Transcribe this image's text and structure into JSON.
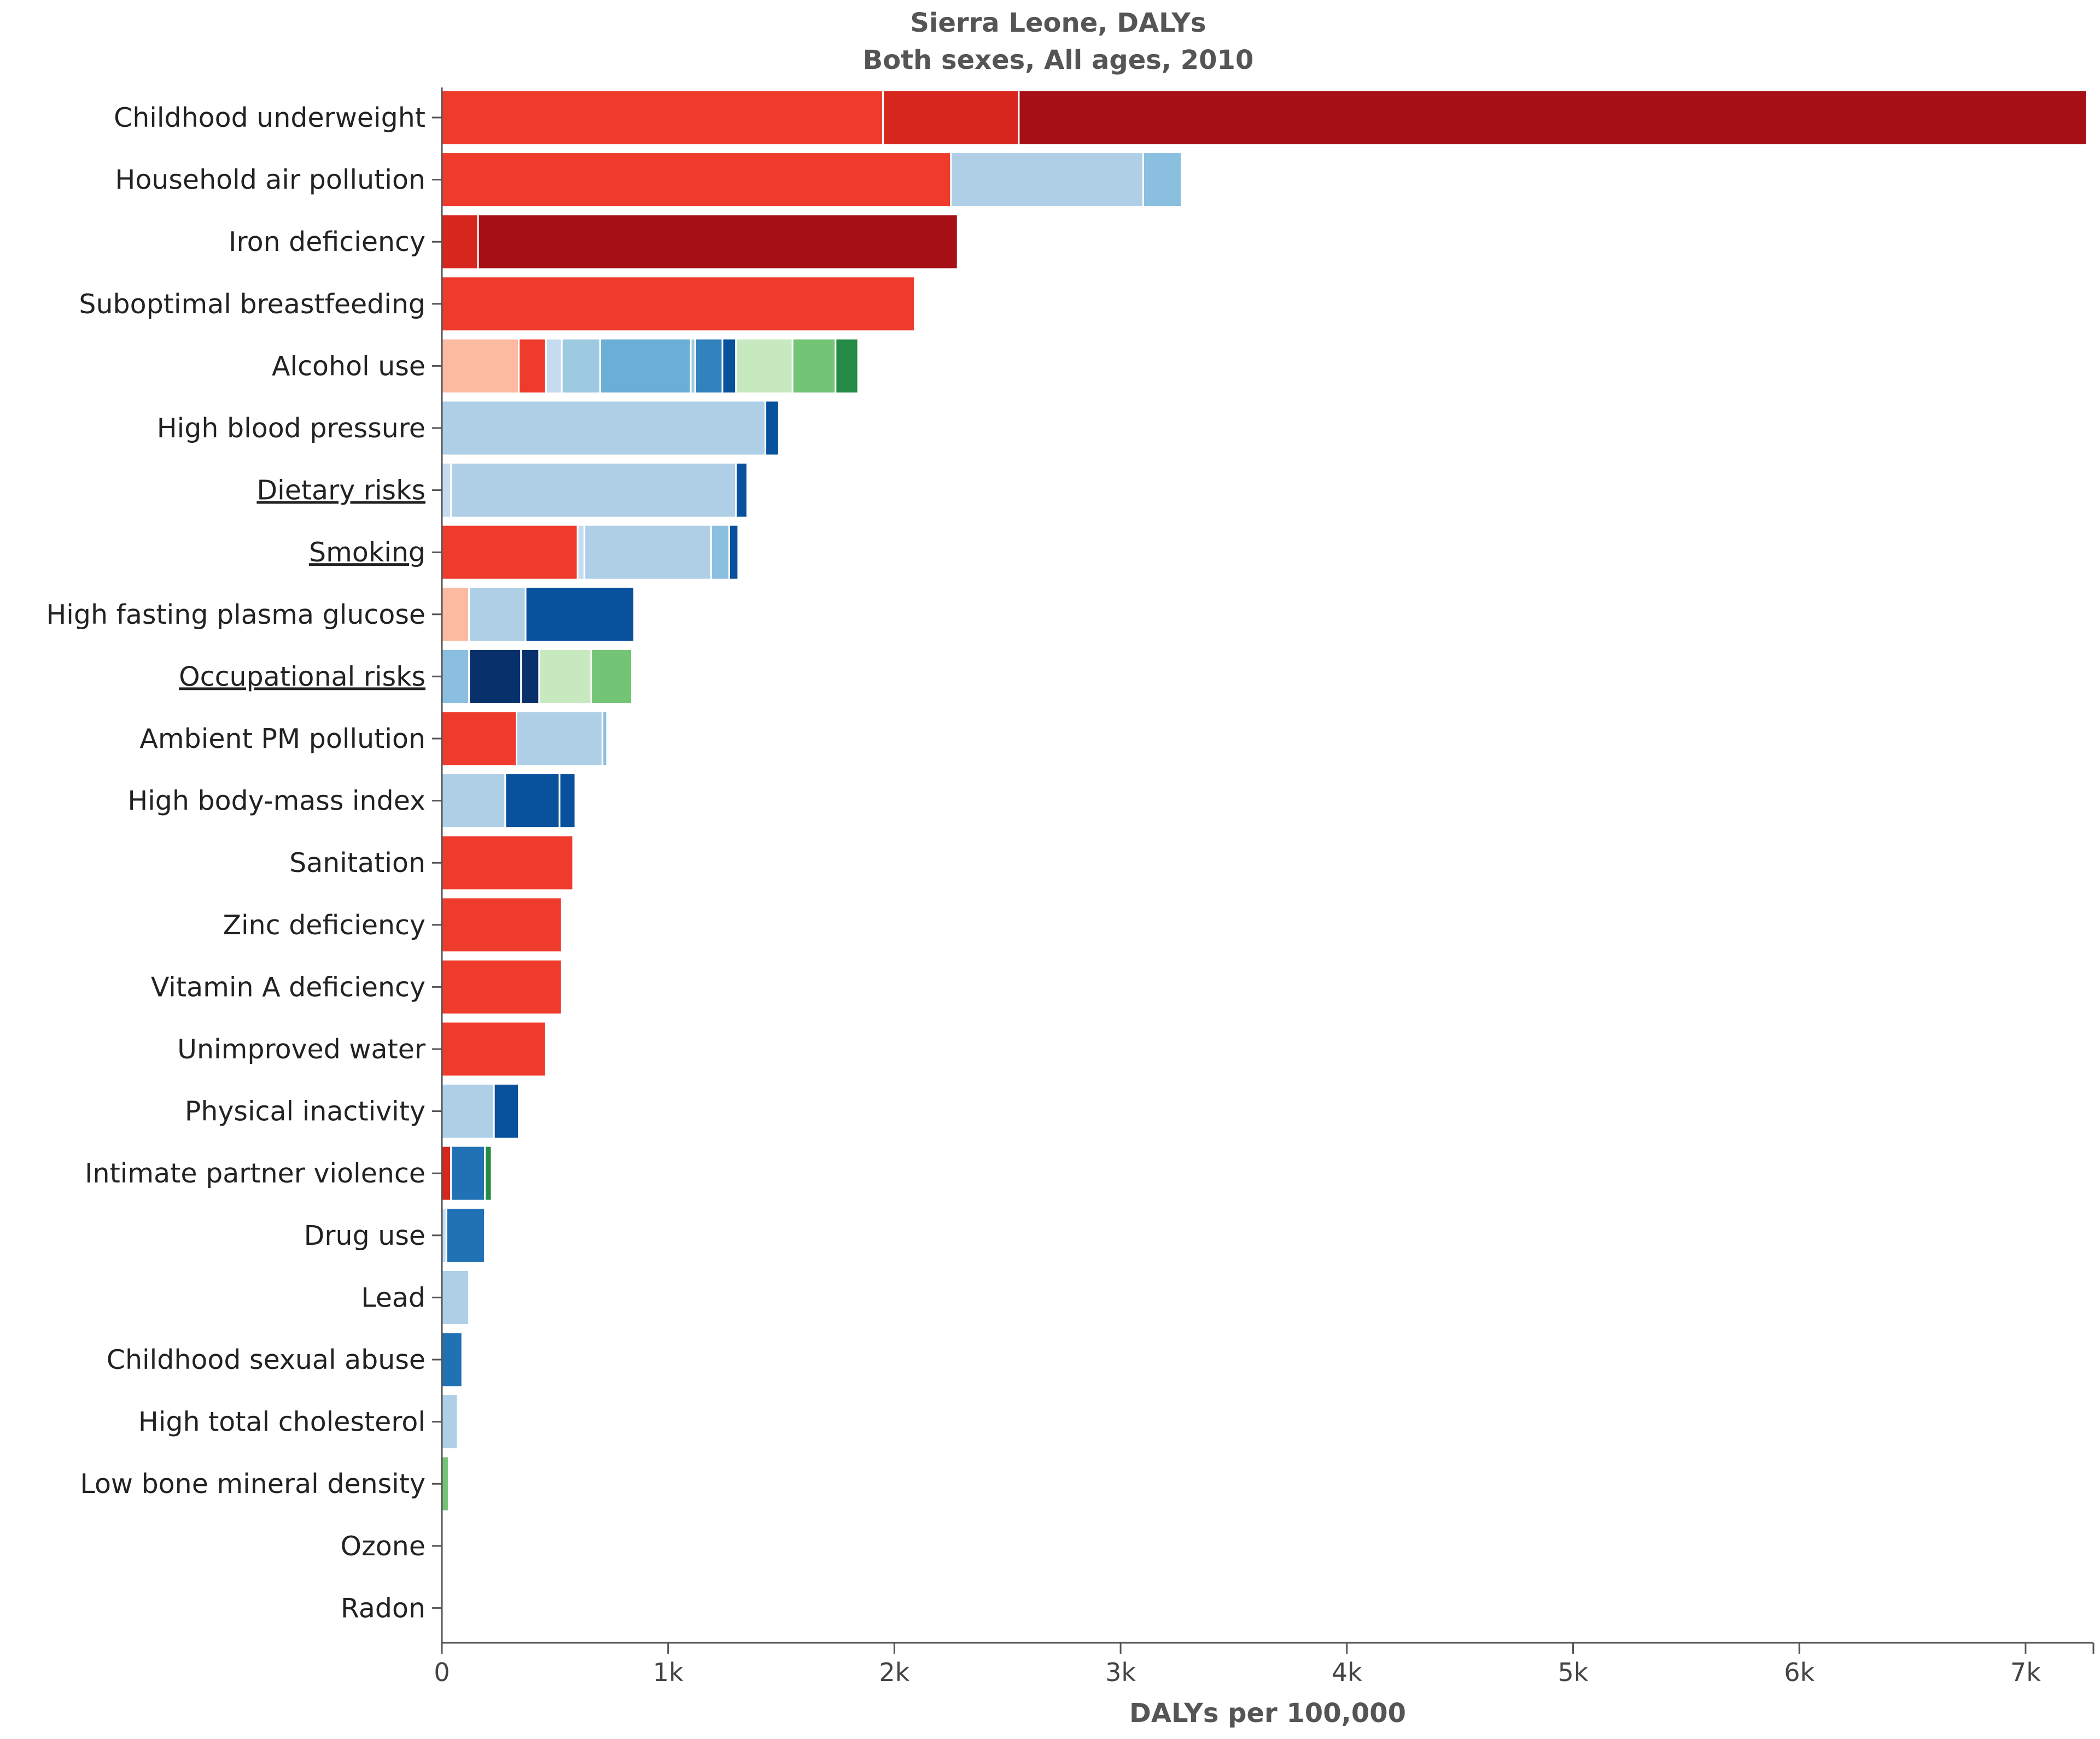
{
  "chart_data": {
    "type": "bar",
    "orientation": "horizontal",
    "stacked": true,
    "title": "Sierra Leone, DALYs",
    "subtitle": "Both sexes, All ages, 2010",
    "xlabel": "DALYs per 100,000",
    "ylabel": "",
    "xlim": [
      0,
      7300
    ],
    "x_ticks": [
      0,
      1000,
      2000,
      3000,
      4000,
      5000,
      6000,
      7000
    ],
    "x_tick_labels": [
      "0",
      "1k",
      "2k",
      "3k",
      "4k",
      "5k",
      "6k",
      "7k"
    ],
    "grid": false,
    "legend": "none",
    "categories": [
      {
        "label": "Childhood underweight",
        "link": false,
        "segments": [
          {
            "value": 1950,
            "color": "#ef3b2c"
          },
          {
            "value": 600,
            "color": "#d7261e"
          },
          {
            "value": 4720,
            "color": "#a50f15"
          }
        ]
      },
      {
        "label": "Household air pollution",
        "link": false,
        "segments": [
          {
            "value": 2250,
            "color": "#ef3b2c"
          },
          {
            "value": 850,
            "color": "#aecfe6"
          },
          {
            "value": 170,
            "color": "#8bbfe0"
          }
        ]
      },
      {
        "label": "Iron deficiency",
        "link": false,
        "segments": [
          {
            "value": 160,
            "color": "#d7261e"
          },
          {
            "value": 2120,
            "color": "#a50f15"
          }
        ]
      },
      {
        "label": "Suboptimal breastfeeding",
        "link": false,
        "segments": [
          {
            "value": 2090,
            "color": "#ef3b2c"
          }
        ]
      },
      {
        "label": "Alcohol use",
        "link": false,
        "segments": [
          {
            "value": 340,
            "color": "#fcbba1"
          },
          {
            "value": 120,
            "color": "#ef3b2c"
          },
          {
            "value": 70,
            "color": "#c6dbef"
          },
          {
            "value": 170,
            "color": "#9ecae1"
          },
          {
            "value": 400,
            "color": "#6baed6"
          },
          {
            "value": 20,
            "color": "#9ecae1"
          },
          {
            "value": 120,
            "color": "#3182bd"
          },
          {
            "value": 60,
            "color": "#08519c"
          },
          {
            "value": 250,
            "color": "#c7e9c0"
          },
          {
            "value": 190,
            "color": "#74c476"
          },
          {
            "value": 100,
            "color": "#238b45"
          }
        ]
      },
      {
        "label": "High blood pressure",
        "link": false,
        "segments": [
          {
            "value": 1430,
            "color": "#aecfe6"
          },
          {
            "value": 60,
            "color": "#08519c"
          }
        ]
      },
      {
        "label": "Dietary risks",
        "link": true,
        "segments": [
          {
            "value": 40,
            "color": "#c6dbef"
          },
          {
            "value": 1260,
            "color": "#aecfe6"
          },
          {
            "value": 50,
            "color": "#08519c"
          }
        ]
      },
      {
        "label": "Smoking",
        "link": true,
        "segments": [
          {
            "value": 600,
            "color": "#ef3b2c"
          },
          {
            "value": 30,
            "color": "#c6dbef"
          },
          {
            "value": 560,
            "color": "#aecfe6"
          },
          {
            "value": 80,
            "color": "#8bbfe0"
          },
          {
            "value": 40,
            "color": "#08519c"
          }
        ]
      },
      {
        "label": "High fasting plasma glucose",
        "link": false,
        "segments": [
          {
            "value": 120,
            "color": "#fcbba1"
          },
          {
            "value": 250,
            "color": "#aecfe6"
          },
          {
            "value": 480,
            "color": "#08519c"
          }
        ]
      },
      {
        "label": "Occupational risks",
        "link": true,
        "segments": [
          {
            "value": 120,
            "color": "#8bbfe0"
          },
          {
            "value": 230,
            "color": "#08306b"
          },
          {
            "value": 80,
            "color": "#08306b"
          },
          {
            "value": 230,
            "color": "#c7e9c0"
          },
          {
            "value": 180,
            "color": "#74c476"
          }
        ]
      },
      {
        "label": "Ambient PM pollution",
        "link": false,
        "segments": [
          {
            "value": 330,
            "color": "#ef3b2c"
          },
          {
            "value": 380,
            "color": "#aecfe6"
          },
          {
            "value": 20,
            "color": "#8bbfe0"
          }
        ]
      },
      {
        "label": "High body-mass index",
        "link": false,
        "segments": [
          {
            "value": 280,
            "color": "#aecfe6"
          },
          {
            "value": 240,
            "color": "#08519c"
          },
          {
            "value": 70,
            "color": "#08519c"
          }
        ]
      },
      {
        "label": "Sanitation",
        "link": false,
        "segments": [
          {
            "value": 580,
            "color": "#ef3b2c"
          }
        ]
      },
      {
        "label": "Zinc deficiency",
        "link": false,
        "segments": [
          {
            "value": 530,
            "color": "#ef3b2c"
          }
        ]
      },
      {
        "label": "Vitamin A deficiency",
        "link": false,
        "segments": [
          {
            "value": 530,
            "color": "#ef3b2c"
          }
        ]
      },
      {
        "label": "Unimproved water",
        "link": false,
        "segments": [
          {
            "value": 460,
            "color": "#ef3b2c"
          }
        ]
      },
      {
        "label": "Physical inactivity",
        "link": false,
        "segments": [
          {
            "value": 230,
            "color": "#aecfe6"
          },
          {
            "value": 110,
            "color": "#08519c"
          }
        ]
      },
      {
        "label": "Intimate partner violence",
        "link": false,
        "segments": [
          {
            "value": 40,
            "color": "#d7261e"
          },
          {
            "value": 150,
            "color": "#2171b5"
          },
          {
            "value": 30,
            "color": "#238b45"
          }
        ]
      },
      {
        "label": "Drug use",
        "link": false,
        "segments": [
          {
            "value": 20,
            "color": "#c6dbef"
          },
          {
            "value": 170,
            "color": "#2171b5"
          }
        ]
      },
      {
        "label": "Lead",
        "link": false,
        "segments": [
          {
            "value": 120,
            "color": "#aecfe6"
          }
        ]
      },
      {
        "label": "Childhood sexual abuse",
        "link": false,
        "segments": [
          {
            "value": 90,
            "color": "#2171b5"
          }
        ]
      },
      {
        "label": "High total cholesterol",
        "link": false,
        "segments": [
          {
            "value": 70,
            "color": "#aecfe6"
          }
        ]
      },
      {
        "label": "Low bone mineral density",
        "link": false,
        "segments": [
          {
            "value": 30,
            "color": "#74c476"
          }
        ]
      },
      {
        "label": "Ozone",
        "link": false,
        "segments": []
      },
      {
        "label": "Radon",
        "link": false,
        "segments": []
      }
    ]
  }
}
